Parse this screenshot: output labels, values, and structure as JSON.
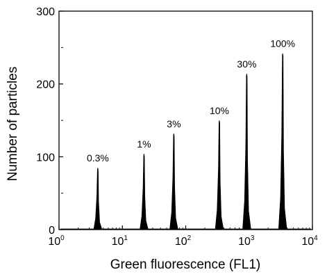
{
  "chart_data": {
    "type": "histogram",
    "title": "",
    "xlabel": "Green fluorescence (FL1)",
    "ylabel": "Number of particles",
    "x_scale": "log",
    "xlim": [
      1,
      10000
    ],
    "ylim": [
      0,
      300
    ],
    "x_ticks": [
      {
        "value": 1,
        "base": "10",
        "exp": "0"
      },
      {
        "value": 10,
        "base": "10",
        "exp": "1"
      },
      {
        "value": 100,
        "base": "10",
        "exp": "2"
      },
      {
        "value": 1000,
        "base": "10",
        "exp": "3"
      },
      {
        "value": 10000,
        "base": "10",
        "exp": "4"
      }
    ],
    "y_ticks": [
      {
        "value": 0,
        "label": "0"
      },
      {
        "value": 100,
        "label": "100"
      },
      {
        "value": 200,
        "label": "200"
      },
      {
        "value": 300,
        "label": "300"
      }
    ],
    "grid": false,
    "peaks": [
      {
        "label": "0.3%",
        "x": 4.1,
        "height": 85
      },
      {
        "label": "1%",
        "x": 22,
        "height": 104
      },
      {
        "label": "3%",
        "x": 65,
        "height": 132
      },
      {
        "label": "10%",
        "x": 340,
        "height": 150
      },
      {
        "label": "30%",
        "x": 920,
        "height": 214
      },
      {
        "label": "100%",
        "x": 3400,
        "height": 242
      }
    ]
  }
}
